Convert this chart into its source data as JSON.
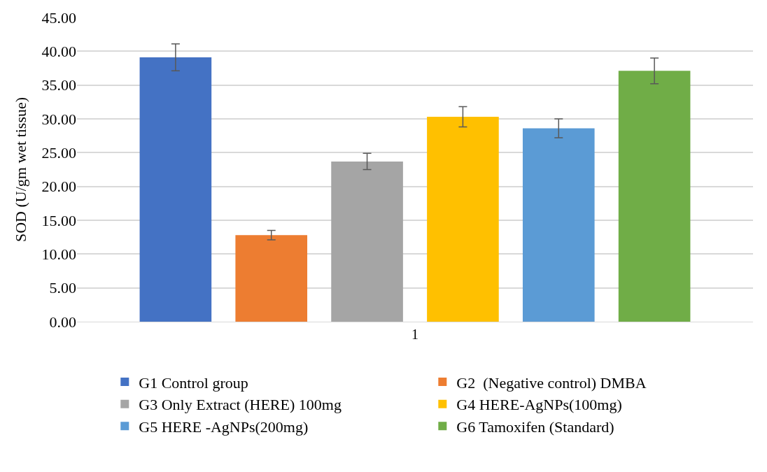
{
  "chart_data": {
    "type": "bar",
    "ylabel": "SOD (U/gm wet tissue)",
    "categories": [
      "1"
    ],
    "series": [
      {
        "name": "G1 Control group",
        "color": "#4472c4",
        "values": [
          39.1
        ],
        "errors": [
          2.0
        ]
      },
      {
        "name": "G2  (Negative control) DMBA",
        "color": "#ed7d31",
        "values": [
          12.8
        ],
        "errors": [
          0.7
        ]
      },
      {
        "name": "G3 Only Extract (HERE) 100mg",
        "color": "#a5a5a5",
        "values": [
          23.7
        ],
        "errors": [
          1.2
        ]
      },
      {
        "name": "G4 HERE-AgNPs(100mg)",
        "color": "#ffc000",
        "values": [
          30.3
        ],
        "errors": [
          1.5
        ]
      },
      {
        "name": "G5 HERE -AgNPs(200mg)",
        "color": "#5b9bd5",
        "values": [
          28.6
        ],
        "errors": [
          1.4
        ]
      },
      {
        "name": "G6 Tamoxifen (Standard)",
        "color": "#70ad47",
        "values": [
          37.1
        ],
        "errors": [
          1.9
        ]
      }
    ],
    "ylim": [
      0,
      45
    ],
    "yticks": [
      {
        "value": 0,
        "label": "0.00"
      },
      {
        "value": 5,
        "label": "5.00"
      },
      {
        "value": 10,
        "label": "10.00"
      },
      {
        "value": 15,
        "label": "15.00"
      },
      {
        "value": 20,
        "label": "20.00"
      },
      {
        "value": 25,
        "label": "25.00"
      },
      {
        "value": 30,
        "label": "30.00"
      },
      {
        "value": 35,
        "label": "35.00"
      },
      {
        "value": 40,
        "label": "40.00"
      },
      {
        "value": 45,
        "label": "45.00"
      }
    ],
    "grid": "y",
    "legend": "bottom"
  }
}
